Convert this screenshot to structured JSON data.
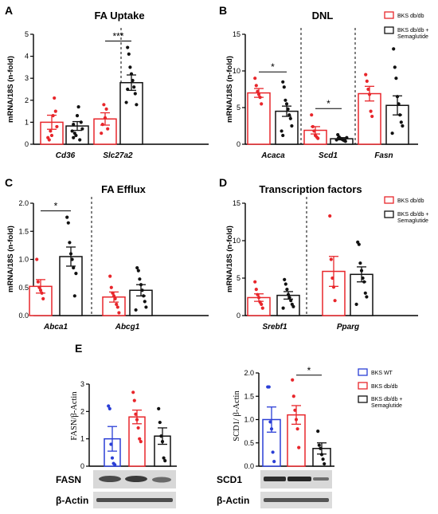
{
  "colors": {
    "db": "#e8262b",
    "sema": "#111111",
    "wt": "#2a3ed6"
  },
  "legend_db_sema": [
    "BKS db/db",
    "BKS db/db +",
    "Semaglutide"
  ],
  "legend_wt_db_sema": [
    "BKS WT",
    "BKS db/db",
    "BKS db/db +",
    "Semaglutide"
  ],
  "blots": {
    "fasn_label": "FASN",
    "actin_label_1": "β-Actin",
    "scd1_label": "SCD1",
    "actin_label_2": "β-Actin"
  },
  "chart_data": [
    {
      "panel": "A",
      "type": "bar",
      "title": "FA Uptake",
      "ylabel": "mRNA/18S (n-fold)",
      "ylim": [
        0,
        5
      ],
      "yticks": [
        "0",
        "1",
        "2",
        "3",
        "4",
        "5"
      ],
      "categories": [
        "Cd36",
        "Slc27a2"
      ],
      "series": [
        {
          "group": "db",
          "means": [
            1.0,
            1.15
          ],
          "sem": [
            0.32,
            0.28
          ],
          "points": [
            [
              0.3,
              0.2,
              0.6,
              0.4,
              1.3,
              2.1,
              1.5,
              0.8
            ],
            [
              0.5,
              0.9,
              1.8,
              1.2,
              1.6,
              0.7
            ]
          ]
        },
        {
          "group": "sema",
          "means": [
            0.83,
            2.8
          ],
          "sem": [
            0.2,
            0.35
          ],
          "points": [
            [
              0.3,
              0.5,
              0.4,
              1.3,
              1.7,
              0.2,
              1.0,
              0.7,
              0.6,
              0.9
            ],
            [
              4.4,
              4.1,
              3.5,
              3.2,
              2.9,
              2.6,
              2.3,
              1.8,
              1.9,
              2.5
            ]
          ]
        }
      ],
      "significance": [
        {
          "category": "Slc27a2",
          "label": "***"
        }
      ]
    },
    {
      "panel": "B",
      "type": "bar",
      "title": "DNL",
      "ylabel": "mRNA/18S (n-fold)",
      "ylim": [
        0,
        15
      ],
      "yticks": [
        "0",
        "5",
        "10",
        "15"
      ],
      "categories": [
        "Acaca",
        "Scd1",
        "Fasn"
      ],
      "series": [
        {
          "group": "db",
          "means": [
            7.0,
            1.9,
            6.9
          ],
          "sem": [
            0.6,
            0.5,
            1.0
          ],
          "points": [
            [
              9.0,
              8.0,
              7.2,
              6.8,
              6.4,
              5.5
            ],
            [
              4.0,
              2.4,
              1.8,
              1.2,
              1.0,
              0.8
            ],
            [
              9.5,
              8.6,
              7.5,
              6.8,
              4.5,
              3.8
            ]
          ]
        },
        {
          "group": "sema",
          "means": [
            4.5,
            0.75,
            5.3
          ],
          "sem": [
            0.7,
            0.15,
            1.3
          ],
          "points": [
            [
              8.5,
              7.8,
              6.0,
              5.5,
              4.8,
              4.0,
              3.5,
              2.5,
              1.8,
              1.2
            ],
            [
              1.3,
              1.0,
              0.8,
              0.7,
              0.6,
              0.5,
              0.4,
              0.9,
              0.6
            ],
            [
              13.0,
              10.5,
              9.0,
              6.5,
              5.5,
              4.0,
              3.0,
              2.5,
              1.5
            ]
          ]
        }
      ],
      "significance": [
        {
          "category": "Acaca",
          "label": "*"
        },
        {
          "category": "Scd1",
          "label": "*"
        }
      ]
    },
    {
      "panel": "C",
      "type": "bar",
      "title": "FA Efflux",
      "ylabel": "mRNA/18S (n-fold)",
      "ylim": [
        0,
        2.0
      ],
      "yticks": [
        "0.0",
        "0.5",
        "1.0",
        "1.5",
        "2.0"
      ],
      "categories": [
        "Abca1",
        "Abcg1"
      ],
      "series": [
        {
          "group": "db",
          "means": [
            0.52,
            0.33
          ],
          "sem": [
            0.12,
            0.09
          ],
          "points": [
            [
              1.0,
              0.6,
              0.5,
              0.45,
              0.4,
              0.3
            ],
            [
              0.7,
              0.5,
              0.4,
              0.35,
              0.3,
              0.2,
              0.15,
              0.05
            ]
          ]
        },
        {
          "group": "sema",
          "means": [
            1.05,
            0.45
          ],
          "sem": [
            0.17,
            0.1
          ],
          "points": [
            [
              1.75,
              1.65,
              1.3,
              1.1,
              1.0,
              0.85,
              0.35,
              0.75
            ],
            [
              0.85,
              0.8,
              0.65,
              0.55,
              0.45,
              0.35,
              0.25,
              0.15,
              0.1
            ]
          ]
        }
      ],
      "significance": [
        {
          "category": "Abca1",
          "label": "*"
        }
      ]
    },
    {
      "panel": "D",
      "type": "bar",
      "title": "Transcription factors",
      "ylabel": "mRNA/18S (n-fold)",
      "ylim": [
        0,
        15
      ],
      "yticks": [
        "0",
        "5",
        "10",
        "15"
      ],
      "categories": [
        "Srebf1",
        "Pparg"
      ],
      "series": [
        {
          "group": "db",
          "means": [
            2.4,
            5.9
          ],
          "sem": [
            0.5,
            2.0
          ],
          "points": [
            [
              4.5,
              3.5,
              2.8,
              2.4,
              1.8,
              1.5,
              1.0
            ],
            [
              13.3,
              7.5,
              5.0,
              3.8,
              2.0
            ]
          ]
        },
        {
          "group": "sema",
          "means": [
            2.7,
            5.5
          ],
          "sem": [
            0.5,
            1.0
          ],
          "points": [
            [
              4.8,
              4.2,
              3.5,
              2.8,
              2.4,
              2.0,
              1.5,
              1.2,
              1.0
            ],
            [
              9.8,
              9.5,
              7.0,
              6.0,
              5.0,
              4.5,
              3.0,
              2.5,
              1.5
            ]
          ]
        }
      ]
    },
    {
      "panel": "E",
      "type": "bar",
      "title": "",
      "ylabel": "FASN/β-Actin",
      "ylim": [
        0,
        3
      ],
      "yticks": [
        "0",
        "1",
        "2",
        "3"
      ],
      "categories": [
        "BKS WT",
        "BKS db/db",
        "BKS db/db + Semaglutide"
      ],
      "series": [
        {
          "group": "wt",
          "means": [
            1.0
          ],
          "sem": [
            0.45
          ],
          "points": [
            [
              2.2,
              2.1,
              0.8,
              0.3,
              0.1,
              0.05
            ]
          ]
        },
        {
          "group": "db",
          "means": [
            1.8
          ],
          "sem": [
            0.25
          ],
          "points": [
            [
              2.7,
              2.4,
              1.9,
              1.7,
              1.4,
              1.0,
              0.9
            ]
          ]
        },
        {
          "group": "sema",
          "means": [
            1.1
          ],
          "sem": [
            0.3
          ],
          "points": [
            [
              2.1,
              1.6,
              1.1,
              0.9,
              0.3,
              0.2
            ]
          ]
        }
      ]
    },
    {
      "panel": "E",
      "type": "bar",
      "title": "",
      "ylabel": "SCD1/ β-Actin",
      "ylim": [
        0,
        2.0
      ],
      "yticks": [
        "0.0",
        "0.5",
        "1.0",
        "1.5",
        "2.0"
      ],
      "categories": [
        "BKS WT",
        "BKS db/db",
        "BKS db/db + Semaglutide"
      ],
      "series": [
        {
          "group": "wt",
          "means": [
            1.0
          ],
          "sem": [
            0.27
          ],
          "points": [
            [
              1.7,
              1.7,
              0.95,
              0.8,
              0.3,
              0.1
            ]
          ]
        },
        {
          "group": "db",
          "means": [
            1.1
          ],
          "sem": [
            0.2
          ],
          "points": [
            [
              1.85,
              1.5,
              1.2,
              1.0,
              0.8,
              0.4
            ]
          ]
        },
        {
          "group": "sema",
          "means": [
            0.38
          ],
          "sem": [
            0.12
          ],
          "points": [
            [
              0.75,
              0.45,
              0.38,
              0.25,
              0.15,
              0.05
            ]
          ]
        }
      ],
      "significance": [
        {
          "between": "BKS db/db vs BKS db/db + Semaglutide",
          "label": "*"
        }
      ]
    }
  ]
}
